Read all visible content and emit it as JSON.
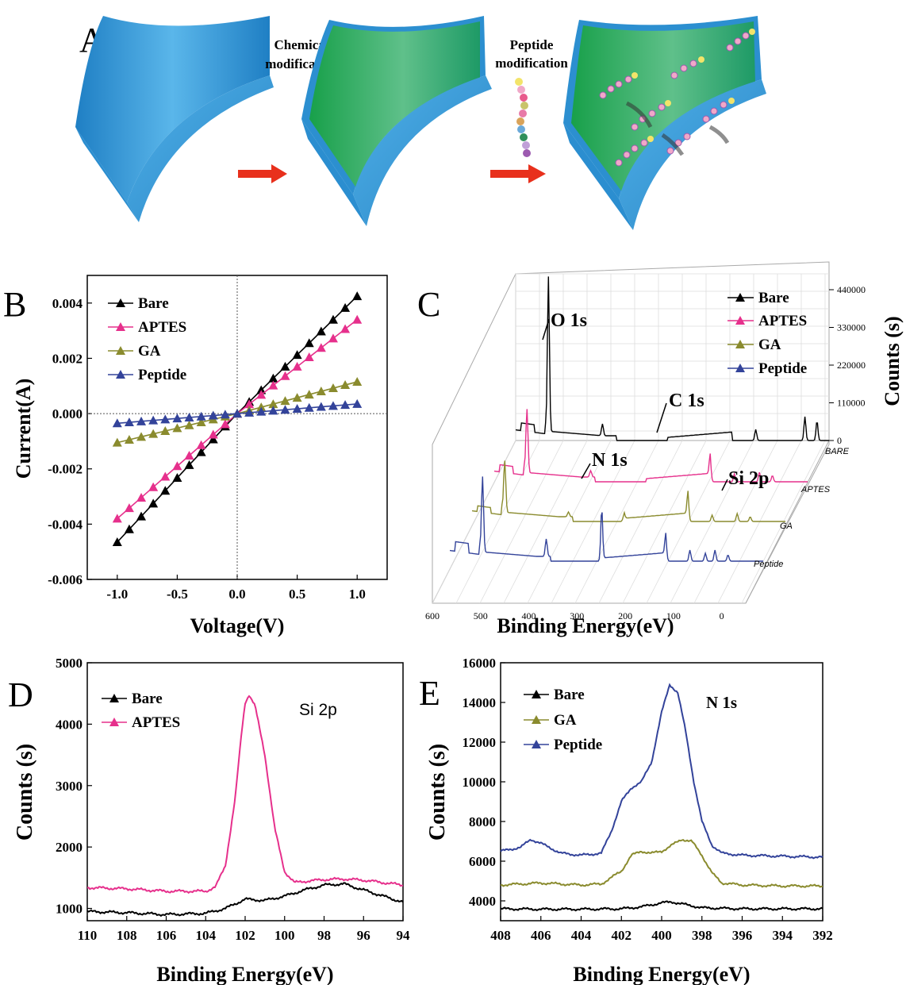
{
  "colors": {
    "bare": "#000000",
    "aptes": "#e6308c",
    "ga": "#8a8b2e",
    "peptide": "#33439a",
    "arrow": "#e8301c",
    "slab_blue": "#2c8fd0",
    "slab_green": "#2fa664"
  },
  "panel_a": {
    "letter": "A",
    "step1": [
      "Chemical",
      "modification"
    ],
    "step2": [
      "Peptide",
      "modification"
    ]
  },
  "chart_data": [
    {
      "panel": "B",
      "type": "line",
      "xlabel": "Voltage(V)",
      "ylabel": "Current(A)",
      "xlim": [
        -1.25,
        1.25
      ],
      "ylim": [
        -0.006,
        0.005
      ],
      "xticks": [
        -1.0,
        -0.5,
        0.0,
        0.5,
        1.0
      ],
      "xtick_labels": [
        "-1.0",
        "-0.5",
        "0.0",
        "0.5",
        "1.0"
      ],
      "yticks": [
        -0.006,
        -0.004,
        -0.002,
        0.0,
        0.002,
        0.004
      ],
      "ytick_labels": [
        "-0.006",
        "-0.004",
        "-0.002",
        "0.000",
        "0.002",
        "0.004"
      ],
      "legend_position": "top-left",
      "series": [
        {
          "name": "Bare",
          "color_key": "bare",
          "x_range": [
            -1.0,
            1.0
          ],
          "points": 21,
          "slope": 0.00445,
          "y_end": [
            -0.00465,
            0.00425
          ]
        },
        {
          "name": "APTES",
          "color_key": "aptes",
          "x_range": [
            -1.0,
            1.0
          ],
          "points": 21,
          "y_end": [
            -0.0038,
            0.0034
          ]
        },
        {
          "name": "GA",
          "color_key": "ga",
          "x_range": [
            -1.0,
            1.0
          ],
          "points": 21,
          "y_end": [
            -0.00105,
            0.00115
          ]
        },
        {
          "name": "Peptide",
          "color_key": "peptide",
          "x_range": [
            -1.0,
            1.0
          ],
          "points": 21,
          "y_end": [
            -0.00035,
            0.00035
          ]
        }
      ]
    },
    {
      "panel": "C",
      "type": "line",
      "projection": "3d-waterfall",
      "xlabel": "Binding Energy(eV)",
      "zlabel": "Counts (s)",
      "xlim": [
        600,
        -50
      ],
      "xticks": [
        600,
        500,
        400,
        300,
        200,
        100,
        0
      ],
      "xtick_labels": [
        "600",
        "500",
        "400",
        "300",
        "200",
        "100",
        "0"
      ],
      "zticks": [
        0,
        110000,
        220000,
        330000,
        440000
      ],
      "ztick_labels": [
        "0",
        "110000",
        "220000",
        "330000",
        "440000"
      ],
      "depth_labels": [
        "BARE",
        "APTES",
        "GA",
        "Peptide"
      ],
      "legend_position": "top-right",
      "legend": [
        "Bare",
        "APTES",
        "GA",
        "Peptide"
      ],
      "annotations": [
        "O 1s",
        "C 1s",
        "N 1s",
        "Si 2p"
      ],
      "peaks_eV": {
        "O 1s": 532,
        "N 1s": 400,
        "C 1s": 285,
        "Si 2p": 101
      }
    },
    {
      "panel": "D",
      "type": "line",
      "xlabel": "Binding Energy(eV)",
      "ylabel": "Counts (s)",
      "xlim": [
        110,
        94
      ],
      "ylim": [
        800,
        5000
      ],
      "xticks": [
        110,
        108,
        106,
        104,
        102,
        100,
        98,
        96,
        94
      ],
      "xtick_labels": [
        "110",
        "108",
        "106",
        "104",
        "102",
        "100",
        "98",
        "96",
        "94"
      ],
      "yticks": [
        1000,
        2000,
        3000,
        4000,
        5000
      ],
      "ytick_labels": [
        "1000",
        "2000",
        "3000",
        "4000",
        "5000"
      ],
      "legend_position": "top-left",
      "annotation": "Si 2p",
      "series": [
        {
          "name": "Bare",
          "color_key": "bare",
          "x": [
            110,
            108,
            106,
            104,
            103,
            102,
            101,
            100,
            99,
            98,
            97,
            96,
            95,
            94
          ],
          "y": [
            950,
            930,
            900,
            920,
            1000,
            1150,
            1130,
            1200,
            1300,
            1380,
            1400,
            1300,
            1200,
            1100
          ]
        },
        {
          "name": "APTES",
          "color_key": "aptes",
          "x": [
            110,
            108,
            106,
            104,
            103.5,
            103,
            102.5,
            102.2,
            102,
            101.8,
            101.5,
            101,
            100.5,
            100,
            99.5,
            99,
            98,
            97,
            96,
            95,
            94
          ],
          "y": [
            1340,
            1320,
            1280,
            1280,
            1350,
            1700,
            2800,
            3800,
            4350,
            4480,
            4300,
            3500,
            2300,
            1600,
            1420,
            1440,
            1470,
            1480,
            1460,
            1420,
            1380
          ]
        }
      ]
    },
    {
      "panel": "E",
      "type": "line",
      "xlabel": "Binding Energy(eV)",
      "ylabel": "Counts (s)",
      "xlim": [
        408,
        392
      ],
      "ylim": [
        3000,
        16000
      ],
      "xticks": [
        408,
        406,
        404,
        402,
        400,
        398,
        396,
        394,
        392
      ],
      "xtick_labels": [
        "408",
        "406",
        "404",
        "402",
        "400",
        "398",
        "396",
        "394",
        "392"
      ],
      "yticks": [
        4000,
        6000,
        8000,
        10000,
        12000,
        14000,
        16000
      ],
      "ytick_labels": [
        "4000",
        "6000",
        "8000",
        "10000",
        "12000",
        "14000",
        "16000"
      ],
      "legend_position": "top-left",
      "annotation": "N 1s",
      "series": [
        {
          "name": "Bare",
          "color_key": "bare",
          "x": [
            408,
            406,
            404,
            402,
            401,
            400,
            399.5,
            399,
            398,
            396,
            394,
            392
          ],
          "y": [
            3600,
            3580,
            3580,
            3600,
            3700,
            3900,
            3950,
            3850,
            3650,
            3600,
            3600,
            3600
          ]
        },
        {
          "name": "GA",
          "color_key": "ga",
          "x": [
            408,
            406,
            404,
            403,
            402,
            401.5,
            401,
            400.5,
            400,
            399.5,
            399,
            398.5,
            398,
            397.5,
            397,
            396,
            394,
            392
          ],
          "y": [
            4800,
            4900,
            4800,
            4850,
            5500,
            6300,
            6500,
            6400,
            6500,
            6800,
            7100,
            7000,
            6300,
            5400,
            4900,
            4800,
            4750,
            4750
          ]
        },
        {
          "name": "Peptide",
          "color_key": "peptide",
          "x": [
            408,
            407,
            406.5,
            406,
            405,
            404,
            403,
            402.5,
            402,
            401.5,
            401,
            400.5,
            400,
            399.6,
            399.2,
            398.8,
            398.4,
            398,
            397.5,
            397,
            396,
            394,
            392
          ],
          "y": [
            6500,
            6700,
            7100,
            6900,
            6400,
            6300,
            6400,
            7500,
            9000,
            9700,
            10000,
            11000,
            13500,
            14900,
            14500,
            12500,
            10000,
            8000,
            6800,
            6400,
            6300,
            6250,
            6200
          ]
        }
      ]
    }
  ]
}
